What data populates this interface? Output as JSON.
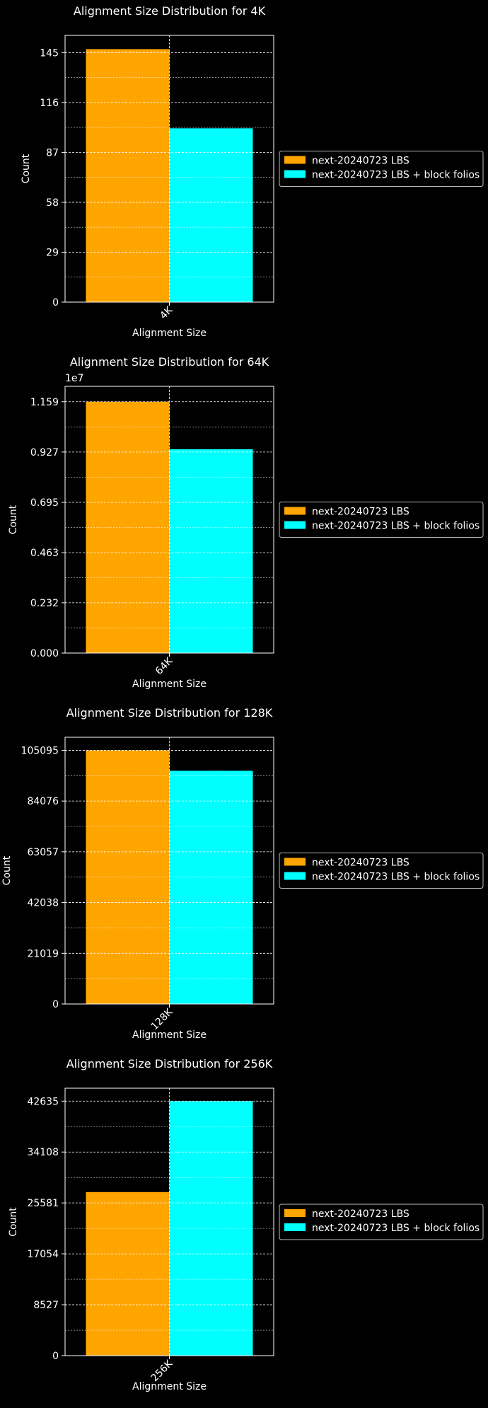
{
  "background_color": "#000000",
  "foreground_color": "#ffffff",
  "chart_data": [
    {
      "type": "bar",
      "title": "Alignment Size Distribution for 4K",
      "xlabel": "Alignment Size",
      "ylabel": "Count",
      "categories": [
        "4K"
      ],
      "ylim": [
        0,
        155
      ],
      "yticks": [
        0,
        29,
        58,
        87,
        116,
        145
      ],
      "ytick_labels": [
        "0",
        "29",
        "58",
        "87",
        "116",
        "145"
      ],
      "offset_text": "",
      "grid": true,
      "legend_position": "outside-right",
      "series": [
        {
          "name": "next-20240723 LBS",
          "color": "#FFA500",
          "values": [
            147
          ]
        },
        {
          "name": "next-20240723 LBS + block folios",
          "color": "#00FFFF",
          "values": [
            101
          ]
        }
      ]
    },
    {
      "type": "bar",
      "title": "Alignment Size Distribution for 64K",
      "xlabel": "Alignment Size",
      "ylabel": "Count",
      "categories": [
        "64K"
      ],
      "ylim": [
        0,
        12300000
      ],
      "yticks": [
        0,
        2320000,
        4630000,
        6950000,
        9270000,
        11590000
      ],
      "ytick_labels": [
        "0.000",
        "0.232",
        "0.463",
        "0.695",
        "0.927",
        "1.159"
      ],
      "offset_text": "1e7",
      "grid": true,
      "legend_position": "outside-right",
      "series": [
        {
          "name": "next-20240723 LBS",
          "color": "#FFA500",
          "values": [
            11590000
          ]
        },
        {
          "name": "next-20240723 LBS + block folios",
          "color": "#00FFFF",
          "values": [
            9400000
          ]
        }
      ]
    },
    {
      "type": "bar",
      "title": "Alignment Size Distribution for 128K",
      "xlabel": "Alignment Size",
      "ylabel": "Count",
      "categories": [
        "128K"
      ],
      "ylim": [
        0,
        110500
      ],
      "yticks": [
        0,
        21019,
        42038,
        63057,
        84076,
        105095
      ],
      "ytick_labels": [
        "0",
        "21019",
        "42038",
        "63057",
        "84076",
        "105095"
      ],
      "offset_text": "",
      "grid": true,
      "legend_position": "outside-right",
      "series": [
        {
          "name": "next-20240723 LBS",
          "color": "#FFA500",
          "values": [
            105095
          ]
        },
        {
          "name": "next-20240723 LBS + block folios",
          "color": "#00FFFF",
          "values": [
            96600
          ]
        }
      ]
    },
    {
      "type": "bar",
      "title": "Alignment Size Distribution for 256K",
      "xlabel": "Alignment Size",
      "ylabel": "Count",
      "categories": [
        "256K"
      ],
      "ylim": [
        0,
        44800
      ],
      "yticks": [
        0,
        8527,
        17054,
        25581,
        34108,
        42635
      ],
      "ytick_labels": [
        "0",
        "8527",
        "17054",
        "25581",
        "34108",
        "42635"
      ],
      "offset_text": "",
      "grid": true,
      "legend_position": "outside-right",
      "series": [
        {
          "name": "next-20240723 LBS",
          "color": "#FFA500",
          "values": [
            27400
          ]
        },
        {
          "name": "next-20240723 LBS + block folios",
          "color": "#00FFFF",
          "values": [
            42635
          ]
        }
      ]
    }
  ]
}
